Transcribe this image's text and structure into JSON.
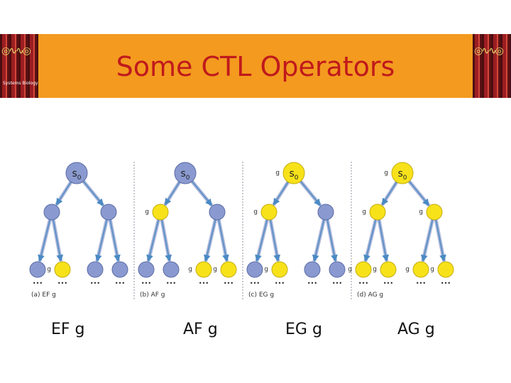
{
  "slide": {
    "title": "Some CTL Operators",
    "logo_text": "Systems Biology"
  },
  "panels": [
    {
      "caption": "(a) EF g",
      "root": {
        "label": "s",
        "sub": "0",
        "yellow": false,
        "g": false
      },
      "level1": [
        {
          "yellow": false,
          "g": false
        },
        {
          "yellow": false,
          "g": false
        }
      ],
      "level2": [
        {
          "yellow": false,
          "g": false
        },
        {
          "yellow": true,
          "g": true
        },
        {
          "yellow": false,
          "g": false
        },
        {
          "yellow": false,
          "g": false
        }
      ]
    },
    {
      "caption": "(b) AF g",
      "root": {
        "label": "s",
        "sub": "0",
        "yellow": false,
        "g": false
      },
      "level1": [
        {
          "yellow": true,
          "g": true
        },
        {
          "yellow": false,
          "g": false
        }
      ],
      "level2": [
        {
          "yellow": false,
          "g": false
        },
        {
          "yellow": false,
          "g": false
        },
        {
          "yellow": true,
          "g": true
        },
        {
          "yellow": true,
          "g": true
        }
      ]
    },
    {
      "caption": "(c) EG g",
      "root": {
        "label": "s",
        "sub": "0",
        "yellow": true,
        "g": true
      },
      "level1": [
        {
          "yellow": true,
          "g": true
        },
        {
          "yellow": false,
          "g": false
        }
      ],
      "level2": [
        {
          "yellow": false,
          "g": false
        },
        {
          "yellow": true,
          "g": true
        },
        {
          "yellow": false,
          "g": false
        },
        {
          "yellow": false,
          "g": false
        }
      ]
    },
    {
      "caption": "(d) AG g",
      "root": {
        "label": "s",
        "sub": "0",
        "yellow": true,
        "g": true
      },
      "level1": [
        {
          "yellow": true,
          "g": true
        },
        {
          "yellow": true,
          "g": true
        }
      ],
      "level2": [
        {
          "yellow": true,
          "g": true
        },
        {
          "yellow": true,
          "g": true
        },
        {
          "yellow": true,
          "g": true
        },
        {
          "yellow": true,
          "g": true
        }
      ]
    }
  ],
  "g_label": "g",
  "ellipsis": "•••",
  "labels": [
    "EF g",
    "AF g",
    "EG g",
    "AG g"
  ],
  "colors": {
    "banner": "#f39a1f",
    "title": "#c0191c",
    "node_blue": "#8a9ad0",
    "node_blue_edge": "#5a6aa5",
    "node_yellow": "#f7e21a",
    "node_yellow_edge": "#c4ab0f",
    "arrow": "#4a8ac4",
    "arrow_shaft": "#a8b4d8",
    "separator": "#c8c8d0"
  }
}
